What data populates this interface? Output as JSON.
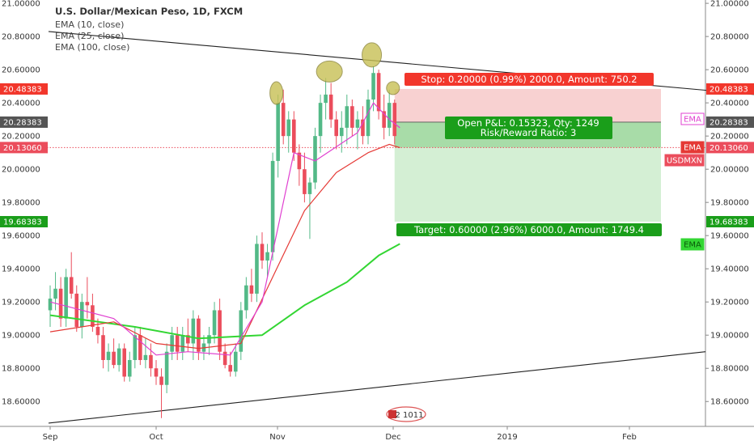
{
  "header": {
    "title": "U.S. Dollar/Mexican Peso, 1D, FXCM",
    "indicators": [
      "EMA (10, close)",
      "EMA (25, close)",
      "EMA (100, close)"
    ]
  },
  "colors": {
    "up": "#53b987",
    "down": "#eb4d5c",
    "ema10": "#e040d0",
    "ema25": "#e53935",
    "ema100": "#33d633",
    "stop_zone": "#f7c9c9",
    "target_zone": "#cdeccd",
    "stop_box": "#f2362b",
    "target_box": "#1a9e1a",
    "trendline": "#222222",
    "marker_fill": "#c8c054"
  },
  "chart_data": {
    "type": "candlestick",
    "symbol": "USDMXN",
    "y_axis": {
      "ylim": [
        18.45,
        21.02
      ],
      "ticks": [
        "18.60000",
        "18.80000",
        "19.00000",
        "19.20000",
        "19.40000",
        "19.60000",
        "19.80000",
        "20.00000",
        "20.20000",
        "20.40000",
        "20.60000",
        "20.80000",
        "21.00000"
      ],
      "tick_values": [
        18.6,
        18.8,
        19.0,
        19.2,
        19.4,
        19.6,
        19.8,
        20.0,
        20.2,
        20.4,
        20.6,
        20.8,
        21.0
      ]
    },
    "x_axis": {
      "labels": [
        "Sep",
        "Oct",
        "Nov",
        "Dec",
        "2019",
        "Feb"
      ]
    },
    "price_tags": [
      {
        "label": "20.48383",
        "value": 20.48383,
        "kind": "stop"
      },
      {
        "label": "20.28383",
        "value": 20.28383,
        "kind": "entry"
      },
      {
        "label": "20.13060",
        "value": 20.1306,
        "kind": "last"
      },
      {
        "label": "19.68383",
        "value": 19.68383,
        "kind": "target"
      }
    ],
    "series_labels": [
      "EMA",
      "EMA",
      "USDMXN",
      "EMA"
    ],
    "candles": [
      [
        19.15,
        19.3,
        19.05,
        19.22
      ],
      [
        19.22,
        19.38,
        19.15,
        19.28
      ],
      [
        19.28,
        19.35,
        19.05,
        19.1
      ],
      [
        19.1,
        19.4,
        19.05,
        19.35
      ],
      [
        19.35,
        19.5,
        19.22,
        19.25
      ],
      [
        19.25,
        19.3,
        19.02,
        19.05
      ],
      [
        19.05,
        19.25,
        18.98,
        19.2
      ],
      [
        19.2,
        19.35,
        19.1,
        19.18
      ],
      [
        19.18,
        19.25,
        19.02,
        19.05
      ],
      [
        19.05,
        19.1,
        18.95,
        19.0
      ],
      [
        19.0,
        19.05,
        18.8,
        18.85
      ],
      [
        18.85,
        18.95,
        18.78,
        18.9
      ],
      [
        18.9,
        18.98,
        18.8,
        18.82
      ],
      [
        18.82,
        18.95,
        18.78,
        18.92
      ],
      [
        18.92,
        18.95,
        18.72,
        18.75
      ],
      [
        18.75,
        18.9,
        18.72,
        18.85
      ],
      [
        18.85,
        19.05,
        18.8,
        19.0
      ],
      [
        19.0,
        19.05,
        18.82,
        18.85
      ],
      [
        18.85,
        18.98,
        18.8,
        18.88
      ],
      [
        18.88,
        18.95,
        18.75,
        18.8
      ],
      [
        18.8,
        18.85,
        18.7,
        18.75
      ],
      [
        18.75,
        18.8,
        18.5,
        18.7
      ],
      [
        18.7,
        18.95,
        18.65,
        18.9
      ],
      [
        18.9,
        19.05,
        18.85,
        19.0
      ],
      [
        19.0,
        19.05,
        18.85,
        18.9
      ],
      [
        18.9,
        19.05,
        18.85,
        19.0
      ],
      [
        19.0,
        19.1,
        18.9,
        18.95
      ],
      [
        18.95,
        19.15,
        18.85,
        19.1
      ],
      [
        19.1,
        19.12,
        18.85,
        18.9
      ],
      [
        18.9,
        19.0,
        18.85,
        18.95
      ],
      [
        18.95,
        19.05,
        18.88,
        19.0
      ],
      [
        19.0,
        19.2,
        18.95,
        19.15
      ],
      [
        19.15,
        19.22,
        18.85,
        18.9
      ],
      [
        18.9,
        18.95,
        18.8,
        18.82
      ],
      [
        18.82,
        18.9,
        18.75,
        18.78
      ],
      [
        18.78,
        18.95,
        18.75,
        18.9
      ],
      [
        18.9,
        19.2,
        18.85,
        19.15
      ],
      [
        19.15,
        19.35,
        19.1,
        19.3
      ],
      [
        19.3,
        19.4,
        19.2,
        19.25
      ],
      [
        19.25,
        19.6,
        19.2,
        19.55
      ],
      [
        19.55,
        19.62,
        19.4,
        19.45
      ],
      [
        19.45,
        19.55,
        19.35,
        19.5
      ],
      [
        19.5,
        20.1,
        19.45,
        20.05
      ],
      [
        20.05,
        20.45,
        19.95,
        20.4
      ],
      [
        20.4,
        20.48,
        20.15,
        20.2
      ],
      [
        20.2,
        20.35,
        20.1,
        20.3
      ],
      [
        20.3,
        20.35,
        20.05,
        20.1
      ],
      [
        20.1,
        20.15,
        19.9,
        20.0
      ],
      [
        20.0,
        20.1,
        19.8,
        19.85
      ],
      [
        19.85,
        19.95,
        19.58,
        19.92
      ],
      [
        19.92,
        20.25,
        19.88,
        20.2
      ],
      [
        20.2,
        20.45,
        20.1,
        20.4
      ],
      [
        20.4,
        20.55,
        20.3,
        20.45
      ],
      [
        20.45,
        20.52,
        20.25,
        20.3
      ],
      [
        20.3,
        20.35,
        20.12,
        20.2
      ],
      [
        20.2,
        20.35,
        20.1,
        20.25
      ],
      [
        20.25,
        20.45,
        20.15,
        20.38
      ],
      [
        20.38,
        20.42,
        20.2,
        20.25
      ],
      [
        20.25,
        20.35,
        20.12,
        20.3
      ],
      [
        20.3,
        20.38,
        20.15,
        20.2
      ],
      [
        20.2,
        20.48,
        20.15,
        20.42
      ],
      [
        20.42,
        20.62,
        20.35,
        20.58
      ],
      [
        20.58,
        20.6,
        20.3,
        20.35
      ],
      [
        20.35,
        20.45,
        20.18,
        20.25
      ],
      [
        20.25,
        20.48,
        20.2,
        20.4
      ],
      [
        20.4,
        20.42,
        20.15,
        20.2
      ]
    ],
    "ema10": [
      [
        0,
        19.2
      ],
      [
        12,
        19.1
      ],
      [
        20,
        18.88
      ],
      [
        26,
        18.9
      ],
      [
        34,
        18.88
      ],
      [
        40,
        19.2
      ],
      [
        46,
        20.1
      ],
      [
        50,
        20.05
      ],
      [
        58,
        20.22
      ],
      [
        61,
        20.4
      ],
      [
        64,
        20.3
      ],
      [
        66,
        20.25
      ]
    ],
    "ema25": [
      [
        0,
        19.02
      ],
      [
        12,
        19.08
      ],
      [
        20,
        18.95
      ],
      [
        28,
        18.92
      ],
      [
        36,
        18.95
      ],
      [
        42,
        19.35
      ],
      [
        48,
        19.75
      ],
      [
        54,
        19.98
      ],
      [
        60,
        20.1
      ],
      [
        64,
        20.15
      ],
      [
        66,
        20.13
      ]
    ],
    "ema100": [
      [
        0,
        19.12
      ],
      [
        16,
        19.05
      ],
      [
        28,
        18.98
      ],
      [
        40,
        19.0
      ],
      [
        48,
        19.18
      ],
      [
        56,
        19.32
      ],
      [
        62,
        19.48
      ],
      [
        66,
        19.55
      ]
    ],
    "trendlines": [
      {
        "from": [
          "Sep",
          20.83
        ],
        "to": [
          "Feb+",
          20.45
        ]
      },
      {
        "from": [
          "Sep",
          18.47
        ],
        "to": [
          "Feb+",
          18.9
        ]
      }
    ],
    "position": {
      "stop_label": "Stop: 0.20000 (0.99%) 2000.0, Amount: 750.2",
      "pnl_label": "Open P&L: 0.15323, Qty: 1249",
      "rr_label": "Risk/Reward Ratio: 3",
      "target_label": "Target: 0.60000 (2.96%) 6000.0, Amount: 1749.4",
      "stop_price": 20.48383,
      "entry_price": 20.28383,
      "last_price": 20.1306,
      "target_price": 19.68383
    },
    "markers": [
      {
        "candle": 43,
        "price": 20.42
      },
      {
        "candle": 53,
        "price": 20.55
      },
      {
        "candle": 61,
        "price": 20.65
      },
      {
        "candle": 65,
        "price": 20.45
      }
    ],
    "event_badge": "2 1011"
  }
}
